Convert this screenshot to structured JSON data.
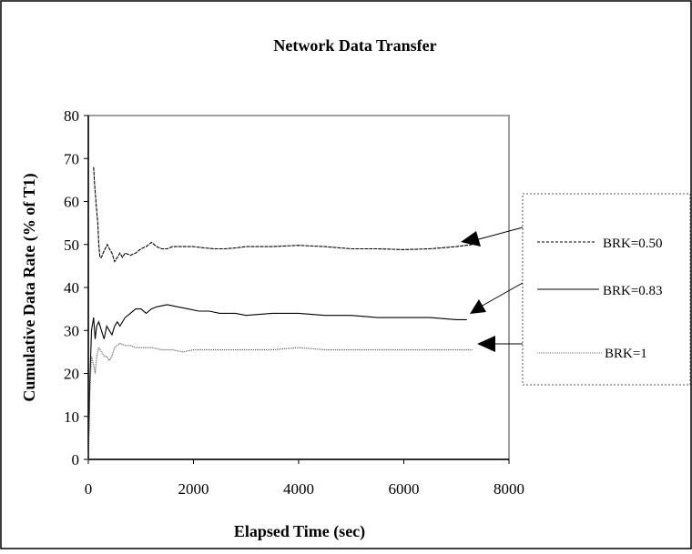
{
  "chart_data": {
    "type": "line",
    "title": "Network Data Transfer",
    "xlabel": "Elapsed Time (sec)",
    "ylabel": "Cumulative Data Rate (% of T1)",
    "xlim": [
      0,
      8000
    ],
    "ylim": [
      0,
      80
    ],
    "xticks": [
      "0",
      "2000",
      "4000",
      "6000",
      "8000"
    ],
    "yticks": [
      "0",
      "10",
      "20",
      "30",
      "40",
      "50",
      "60",
      "70",
      "80"
    ],
    "grid": false,
    "legend_placement": "right",
    "series": [
      {
        "name": "BRK=0.50",
        "color": "#000000",
        "dash": "dashed",
        "x": [
          100,
          120,
          150,
          180,
          200,
          220,
          250,
          280,
          320,
          360,
          400,
          450,
          500,
          550,
          600,
          650,
          700,
          800,
          900,
          1000,
          1100,
          1200,
          1300,
          1400,
          1500,
          1600,
          1800,
          2000,
          2200,
          2400,
          2600,
          2800,
          3000,
          3200,
          3500,
          4000,
          4500,
          5000,
          5500,
          6000,
          6500,
          7000,
          7300
        ],
        "y": [
          68,
          64,
          59,
          55,
          50,
          47,
          47,
          48,
          49,
          50,
          49,
          48,
          46,
          47,
          48,
          47,
          48,
          47.5,
          48,
          49,
          49.5,
          50.5,
          49.5,
          49,
          49,
          49.5,
          49.5,
          49.5,
          49.2,
          49,
          49,
          49.2,
          49.5,
          49.5,
          49.5,
          49.8,
          49.5,
          49,
          49,
          48.8,
          49,
          49.5,
          50
        ]
      },
      {
        "name": "BRK=0.83",
        "color": "#000000",
        "dash": "solid",
        "x": [
          0,
          30,
          60,
          100,
          130,
          160,
          200,
          250,
          300,
          350,
          400,
          450,
          500,
          550,
          600,
          700,
          800,
          900,
          1000,
          1100,
          1200,
          1300,
          1500,
          1700,
          1900,
          2100,
          2300,
          2500,
          2800,
          3000,
          3500,
          4000,
          4500,
          5000,
          5500,
          6000,
          6500,
          7000,
          7200
        ],
        "y": [
          0,
          18,
          30,
          33,
          28,
          31,
          32,
          30,
          28,
          31,
          30,
          29,
          31,
          32,
          31,
          33,
          34,
          35,
          35,
          34,
          35,
          35.5,
          36,
          35.5,
          35,
          34.5,
          34.5,
          34,
          34,
          33.5,
          34,
          34,
          33.5,
          33.5,
          33,
          33,
          33,
          32.5,
          32.5
        ]
      },
      {
        "name": "BRK=1",
        "color": "#555555",
        "dash": "dotted",
        "x": [
          0,
          30,
          60,
          100,
          130,
          160,
          200,
          250,
          300,
          350,
          400,
          450,
          500,
          600,
          700,
          800,
          900,
          1000,
          1200,
          1400,
          1600,
          1800,
          2000,
          2500,
          3000,
          3500,
          4000,
          4500,
          5000,
          5500,
          6000,
          6500,
          7000,
          7300
        ],
        "y": [
          0,
          16,
          24,
          22,
          20,
          24,
          26,
          25,
          24,
          24,
          23,
          24,
          26,
          27,
          26.5,
          26.5,
          26,
          26,
          26,
          25.5,
          25.5,
          25,
          25.5,
          25.5,
          25.5,
          25.5,
          26,
          25.5,
          25.5,
          25.5,
          25.5,
          25.5,
          25.5,
          25.5
        ]
      }
    ]
  },
  "legend": {
    "items": [
      {
        "label": "BRK=0.50"
      },
      {
        "label": "BRK=0.83"
      },
      {
        "label": "BRK=1"
      }
    ]
  }
}
